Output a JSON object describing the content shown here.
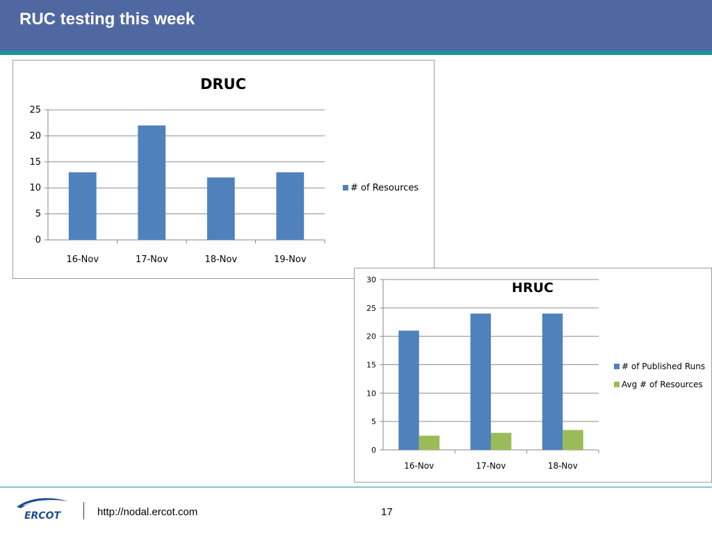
{
  "slide": {
    "title": "RUC testing this week",
    "footer_url": "http://nodal.ercot.com",
    "page_number": "17",
    "logo_text": "ERCOT"
  },
  "colors": {
    "header": "#5068a1",
    "accent_stripe": "#16979f",
    "series_blue": "#4f81bd",
    "series_green": "#9bbb59"
  },
  "chart_data": [
    {
      "type": "bar",
      "title": "DRUC",
      "categories": [
        "16-Nov",
        "17-Nov",
        "18-Nov",
        "19-Nov"
      ],
      "series": [
        {
          "name": "# of Resources",
          "values": [
            13,
            22,
            12,
            13
          ],
          "color": "#4f81bd"
        }
      ],
      "ylim": [
        0,
        25
      ],
      "yticks": [
        0,
        5,
        10,
        15,
        20,
        25
      ],
      "grid": true,
      "legend": "right"
    },
    {
      "type": "bar",
      "title": "HRUC",
      "categories": [
        "16-Nov",
        "17-Nov",
        "18-Nov"
      ],
      "series": [
        {
          "name": "# of Published Runs",
          "values": [
            21,
            24,
            24
          ],
          "color": "#4f81bd"
        },
        {
          "name": "Avg # of Resources",
          "values": [
            2.5,
            3,
            3.5
          ],
          "color": "#9bbb59"
        }
      ],
      "ylim": [
        0,
        30
      ],
      "yticks": [
        0,
        5,
        10,
        15,
        20,
        25,
        30
      ],
      "grid": true,
      "legend": "right"
    }
  ]
}
